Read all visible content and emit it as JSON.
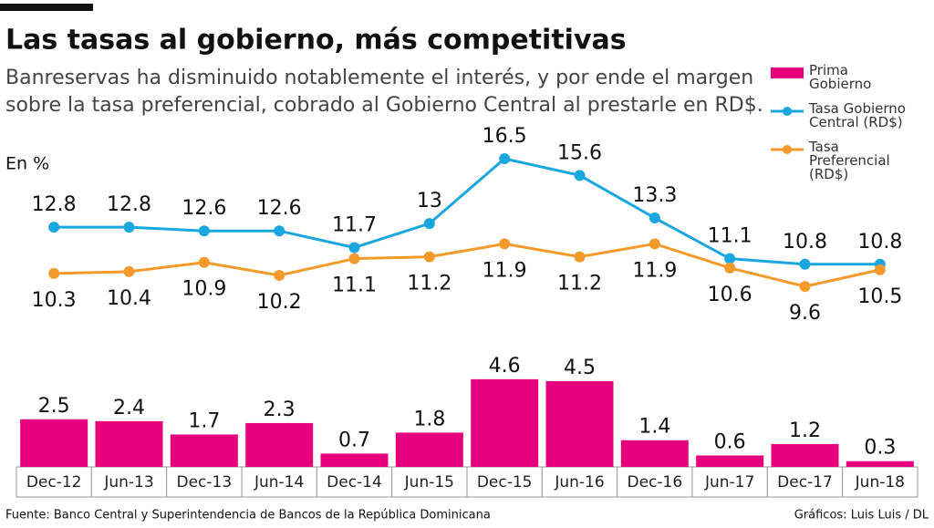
{
  "chart_data": {
    "type": "line+bar",
    "title": "Las tasas al gobierno, más competitivas",
    "subtitle_lines": [
      "Banreservas ha disminuido notablemente el interés, y por ende el margen",
      "sobre la tasa preferencial, cobrado al Gobierno Central al prestarle en RD$."
    ],
    "unit_label": "En %",
    "categories": [
      "Dec-12",
      "Jun-13",
      "Dec-13",
      "Jun-14",
      "Dec-14",
      "Jun-15",
      "Dec-15",
      "Jun-16",
      "Dec-16",
      "Jun-17",
      "Dec-17",
      "Jun-18"
    ],
    "series": [
      {
        "name": "Prima Gobierno",
        "type": "bar",
        "color": "#e6007e",
        "values": [
          2.5,
          2.4,
          1.7,
          2.3,
          0.7,
          1.8,
          4.6,
          4.5,
          1.4,
          0.6,
          1.2,
          0.3
        ]
      },
      {
        "name": "Tasa Gobierno Central (RD$)",
        "type": "line",
        "color": "#1aa7e0",
        "values": [
          12.8,
          12.8,
          12.6,
          12.6,
          11.7,
          13,
          16.5,
          15.6,
          13.3,
          11.1,
          10.8,
          10.8
        ]
      },
      {
        "name": "Tasa Preferencial (RD$)",
        "type": "line",
        "color": "#f39a2b",
        "values": [
          10.3,
          10.4,
          10.9,
          10.2,
          11.1,
          11.2,
          11.9,
          11.2,
          11.9,
          10.6,
          9.6,
          10.5
        ]
      }
    ],
    "source": "Fuente: Banco Central y Superintendencia de Bancos de la República Dominicana",
    "credit": "Gráficos: Luis Luis / DL"
  }
}
